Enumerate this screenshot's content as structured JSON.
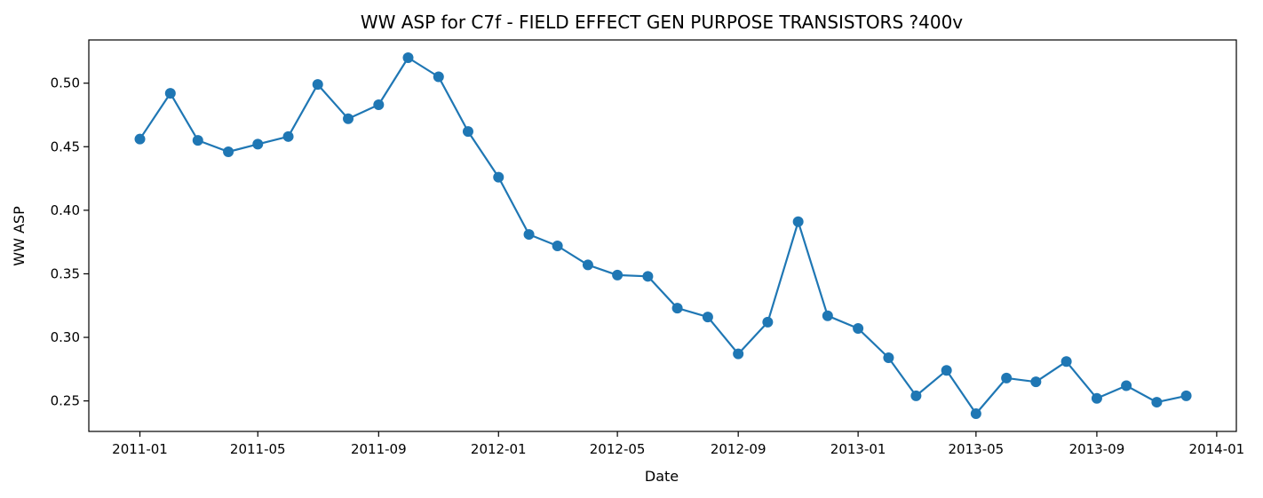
{
  "chart_data": {
    "type": "line",
    "title": "WW ASP for C7f - FIELD EFFECT GEN PURPOSE TRANSISTORS ?400v",
    "xlabel": "Date",
    "ylabel": "WW ASP",
    "x": [
      "2011-01",
      "2011-02",
      "2011-03",
      "2011-04",
      "2011-05",
      "2011-06",
      "2011-07",
      "2011-08",
      "2011-09",
      "2011-10",
      "2011-11",
      "2011-12",
      "2012-01",
      "2012-02",
      "2012-03",
      "2012-04",
      "2012-05",
      "2012-06",
      "2012-07",
      "2012-08",
      "2012-09",
      "2012-10",
      "2012-11",
      "2012-12",
      "2013-01",
      "2013-02",
      "2013-03",
      "2013-04",
      "2013-05",
      "2013-06",
      "2013-07",
      "2013-08",
      "2013-09",
      "2013-10",
      "2013-11",
      "2013-12"
    ],
    "series": [
      {
        "values": [
          0.456,
          0.492,
          0.455,
          0.446,
          0.452,
          0.458,
          0.499,
          0.472,
          0.483,
          0.52,
          0.505,
          0.462,
          0.426,
          0.381,
          0.372,
          0.357,
          0.349,
          0.348,
          0.323,
          0.316,
          0.287,
          0.312,
          0.391,
          0.317,
          0.307,
          0.284,
          0.254,
          0.274,
          0.24,
          0.268,
          0.265,
          0.281,
          0.252,
          0.262,
          0.249,
          0.254
        ],
        "color": "#1f77b4"
      }
    ],
    "x_ticks": [
      "2011-01",
      "2011-05",
      "2011-09",
      "2012-01",
      "2012-05",
      "2012-09",
      "2013-01",
      "2013-05",
      "2013-09",
      "2014-01"
    ],
    "y_ticks": [
      "0.25",
      "0.30",
      "0.35",
      "0.40",
      "0.45",
      "0.50"
    ],
    "xlim": [
      "2010-11-10",
      "2014-01-21"
    ],
    "ylim": [
      0.226,
      0.534
    ],
    "grid": false,
    "legend": "none"
  }
}
